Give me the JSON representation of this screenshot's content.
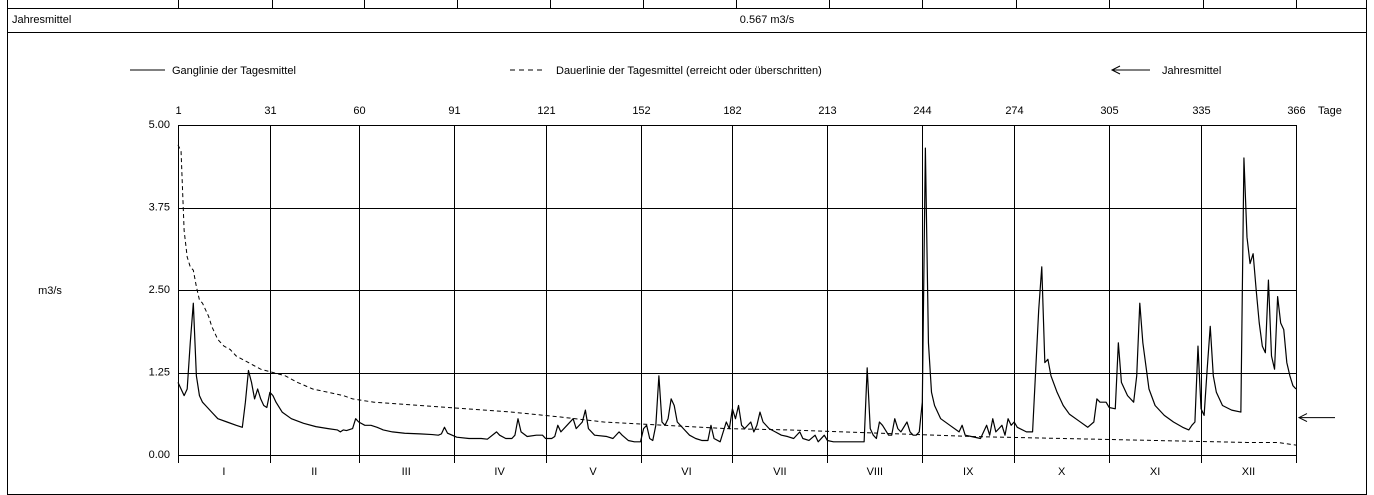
{
  "header": {
    "label": "Jahresmittel",
    "value_label": "0.567 m3/s"
  },
  "chart_data": {
    "type": "line",
    "y_label": "m3/s",
    "x_label": "Tage",
    "xlim": [
      1,
      366
    ],
    "xticks": [
      1,
      31,
      60,
      91,
      121,
      152,
      182,
      213,
      244,
      274,
      305,
      335,
      366
    ],
    "ylim": [
      0,
      5
    ],
    "yticks": [
      {
        "value": 0,
        "label": "0.00"
      },
      {
        "value": 1.25,
        "label": "1.25"
      },
      {
        "value": 2.5,
        "label": "2.50"
      },
      {
        "value": 3.75,
        "label": "3.75"
      },
      {
        "value": 5,
        "label": "5.00"
      }
    ],
    "grid": true,
    "months": [
      "I",
      "II",
      "III",
      "IV",
      "V",
      "VI",
      "VII",
      "VIII",
      "IX",
      "X",
      "XI",
      "XII"
    ],
    "annual_mean": {
      "name": "Jahresmittel",
      "value": 0.567
    },
    "series": [
      {
        "name": "Ganglinie der Tagesmittel",
        "color": "#000000",
        "dash": false,
        "x": [
          1,
          2,
          3,
          4,
          5,
          6,
          7,
          8,
          9,
          10,
          12,
          14,
          17,
          20,
          22,
          23,
          24,
          25,
          26,
          27,
          28,
          29,
          30,
          31,
          32,
          33,
          35,
          38,
          42,
          46,
          50,
          53,
          54,
          55,
          56,
          58,
          59,
          60,
          62,
          64,
          66,
          68,
          71,
          75,
          80,
          84,
          86,
          87,
          88,
          89,
          92,
          96,
          100,
          102,
          105,
          106,
          108,
          110,
          111,
          112,
          113,
          115,
          118,
          120,
          121,
          123,
          124,
          125,
          126,
          128,
          130,
          131,
          133,
          134,
          135,
          137,
          141,
          143,
          145,
          146,
          148,
          150,
          152,
          153,
          154,
          155,
          156,
          157,
          158,
          159,
          160,
          161,
          162,
          163,
          164,
          166,
          168,
          170,
          172,
          174,
          175,
          176,
          178,
          180,
          181,
          182,
          183,
          184,
          185,
          186,
          188,
          189,
          190,
          191,
          192,
          194,
          196,
          198,
          200,
          202,
          204,
          205,
          207,
          209,
          210,
          212,
          213,
          215,
          218,
          221,
          224,
          225,
          226,
          227,
          228,
          229,
          230,
          231,
          233,
          234,
          235,
          236,
          237,
          239,
          240,
          241,
          242,
          243,
          244,
          245,
          246,
          247,
          248,
          250,
          253,
          256,
          257,
          258,
          260,
          263,
          265,
          266,
          267,
          268,
          269,
          270,
          271,
          272,
          273,
          274,
          275,
          278,
          280,
          282,
          283,
          284,
          285,
          286,
          288,
          290,
          292,
          295,
          298,
          300,
          301,
          302,
          304,
          305,
          307,
          308,
          309,
          311,
          313,
          314,
          315,
          316,
          318,
          320,
          323,
          326,
          329,
          331,
          332,
          333,
          334,
          335,
          336,
          337,
          338,
          339,
          340,
          342,
          345,
          348,
          349,
          350,
          351,
          352,
          353,
          354,
          355,
          356,
          357,
          358,
          359,
          360,
          361,
          362,
          363,
          364,
          365,
          366
        ],
        "values": [
          1.1,
          1.0,
          0.9,
          1.0,
          1.7,
          2.3,
          1.2,
          0.9,
          0.8,
          0.75,
          0.65,
          0.55,
          0.5,
          0.45,
          0.42,
          0.8,
          1.28,
          1.1,
          0.85,
          1.0,
          0.85,
          0.75,
          0.72,
          0.95,
          0.9,
          0.8,
          0.65,
          0.55,
          0.48,
          0.43,
          0.4,
          0.38,
          0.35,
          0.38,
          0.37,
          0.4,
          0.55,
          0.5,
          0.45,
          0.45,
          0.42,
          0.38,
          0.35,
          0.33,
          0.32,
          0.31,
          0.3,
          0.32,
          0.42,
          0.33,
          0.27,
          0.25,
          0.25,
          0.24,
          0.35,
          0.3,
          0.25,
          0.25,
          0.3,
          0.55,
          0.35,
          0.28,
          0.3,
          0.3,
          0.25,
          0.25,
          0.28,
          0.45,
          0.35,
          0.45,
          0.55,
          0.4,
          0.5,
          0.68,
          0.4,
          0.3,
          0.28,
          0.25,
          0.35,
          0.3,
          0.22,
          0.2,
          0.2,
          0.4,
          0.45,
          0.25,
          0.22,
          0.45,
          1.2,
          0.5,
          0.45,
          0.55,
          0.85,
          0.75,
          0.5,
          0.4,
          0.3,
          0.25,
          0.22,
          0.22,
          0.45,
          0.25,
          0.2,
          0.5,
          0.4,
          0.7,
          0.55,
          0.75,
          0.45,
          0.4,
          0.5,
          0.35,
          0.45,
          0.65,
          0.5,
          0.4,
          0.35,
          0.3,
          0.28,
          0.25,
          0.35,
          0.25,
          0.22,
          0.3,
          0.2,
          0.3,
          0.22,
          0.2,
          0.2,
          0.2,
          0.2,
          0.2,
          1.32,
          0.4,
          0.3,
          0.25,
          0.5,
          0.45,
          0.3,
          0.3,
          0.55,
          0.4,
          0.35,
          0.5,
          0.35,
          0.3,
          0.3,
          0.35,
          0.8,
          4.65,
          1.7,
          0.95,
          0.75,
          0.55,
          0.45,
          0.35,
          0.45,
          0.3,
          0.28,
          0.25,
          0.45,
          0.3,
          0.55,
          0.35,
          0.4,
          0.45,
          0.3,
          0.55,
          0.45,
          0.5,
          0.42,
          0.35,
          0.35,
          2.2,
          2.85,
          1.4,
          1.45,
          1.2,
          0.95,
          0.75,
          0.62,
          0.52,
          0.42,
          0.5,
          0.85,
          0.8,
          0.8,
          0.72,
          0.7,
          1.7,
          1.1,
          0.9,
          0.8,
          1.2,
          2.3,
          1.7,
          1.0,
          0.75,
          0.6,
          0.5,
          0.42,
          0.38,
          0.45,
          0.5,
          1.65,
          0.7,
          0.6,
          1.3,
          1.95,
          1.2,
          0.95,
          0.75,
          0.68,
          0.65,
          4.5,
          3.3,
          2.9,
          3.05,
          2.5,
          2.0,
          1.65,
          1.55,
          2.65,
          1.5,
          1.3,
          2.4,
          2.0,
          1.9,
          1.4,
          1.2,
          1.05,
          1.0
        ]
      },
      {
        "name": "Dauerlinie der Tagesmittel (erreicht oder überschritten)",
        "color": "#000000",
        "dash": true,
        "x": [
          1,
          2,
          3,
          4,
          5,
          6,
          7,
          8,
          9,
          11,
          12,
          14,
          16,
          18,
          20,
          24,
          28,
          32,
          36,
          40,
          45,
          50,
          55,
          58,
          65,
          80,
          95,
          110,
          125,
          140,
          160,
          180,
          200,
          230,
          260,
          290,
          320,
          350,
          360,
          366
        ],
        "values": [
          4.7,
          4.6,
          3.4,
          3.0,
          2.85,
          2.8,
          2.55,
          2.35,
          2.3,
          2.1,
          1.95,
          1.75,
          1.65,
          1.6,
          1.5,
          1.4,
          1.3,
          1.25,
          1.2,
          1.1,
          1.0,
          0.95,
          0.9,
          0.85,
          0.8,
          0.75,
          0.7,
          0.65,
          0.58,
          0.5,
          0.45,
          0.4,
          0.38,
          0.33,
          0.28,
          0.25,
          0.22,
          0.19,
          0.19,
          0.15
        ]
      }
    ]
  }
}
